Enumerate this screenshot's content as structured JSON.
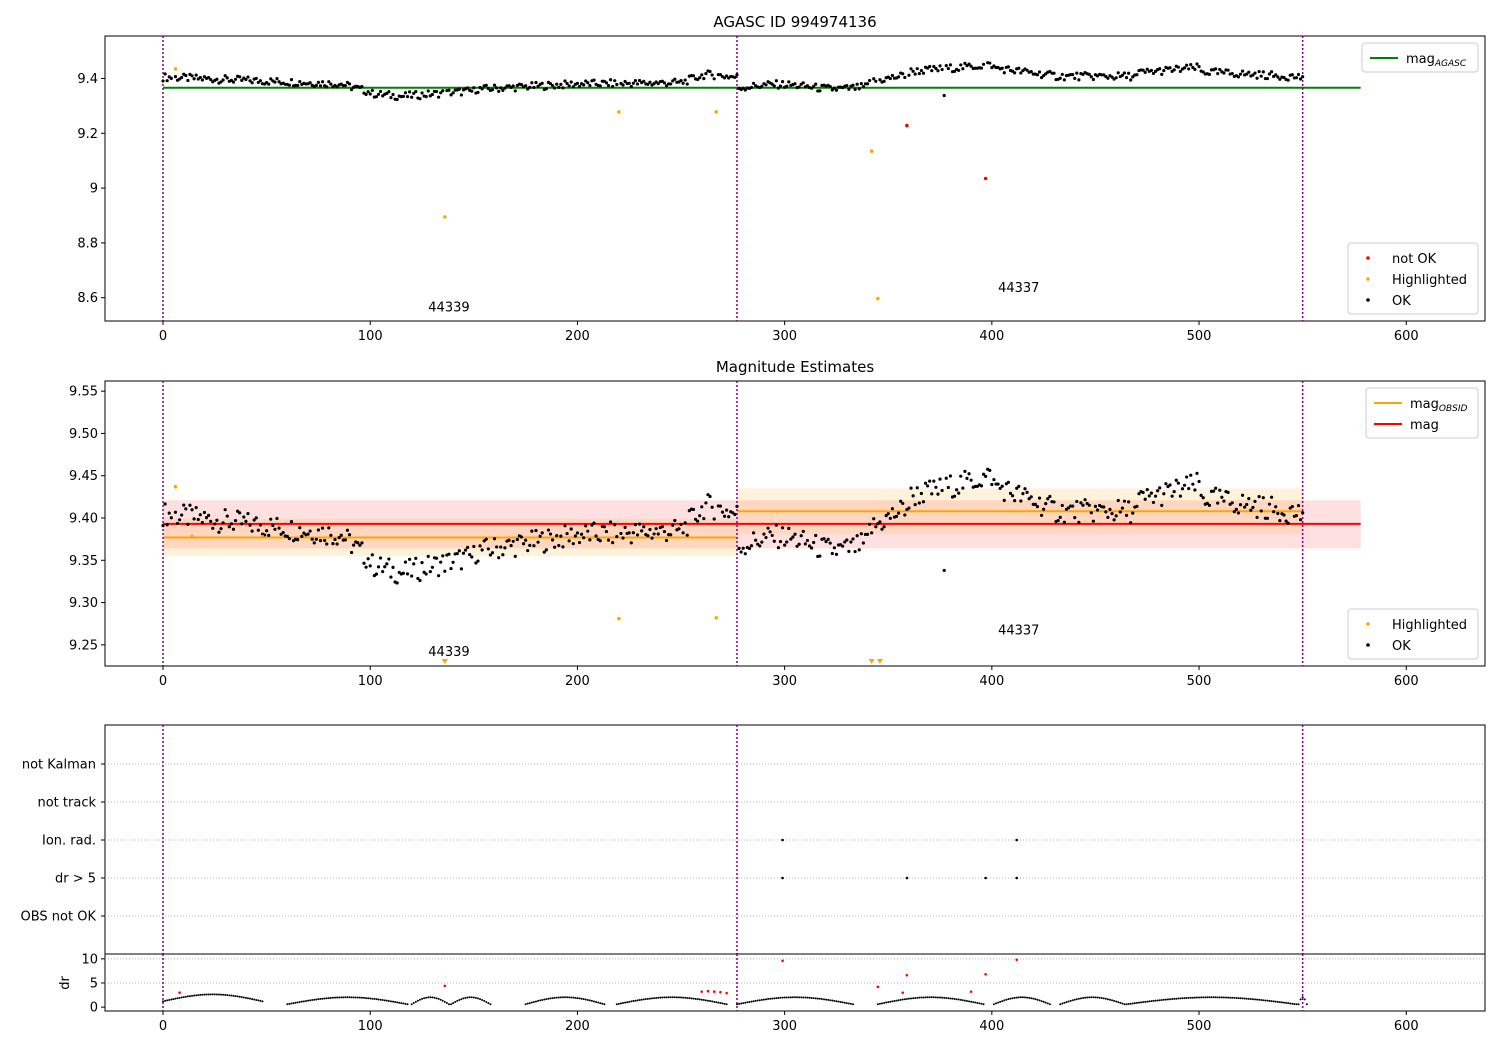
{
  "chart_data": [
    {
      "type": "scatter",
      "title": "AGASC ID 994974136",
      "xlim": [
        -28,
        638
      ],
      "ylim": [
        8.515,
        9.555
      ],
      "xticks": [
        0,
        100,
        200,
        300,
        400,
        500,
        600
      ],
      "yticks": [
        8.6,
        8.8,
        9.0,
        9.2,
        9.4
      ],
      "vlines": [
        0,
        277,
        550
      ],
      "obsid_labels": [
        {
          "text": "44339",
          "x": 138,
          "y": 8.55
        },
        {
          "text": "44337",
          "x": 413,
          "y": 8.62
        }
      ],
      "lines": [
        {
          "name": "mag_AGASC",
          "color": "#008000",
          "y": 9.366,
          "x": [
            0,
            578
          ]
        }
      ],
      "series": [
        {
          "name": "OK",
          "color": "#000000",
          "generator": "ok",
          "offset": 0.0,
          "exclude": [
            5,
            136,
            220,
            267,
            342,
            345,
            359,
            397
          ]
        },
        {
          "name": "Highlighted",
          "color": "#ffa500",
          "points": [
            [
              6,
              9.435
            ],
            [
              136,
              8.895
            ],
            [
              220,
              9.278
            ],
            [
              267,
              9.278
            ],
            [
              342,
              9.135
            ],
            [
              345,
              8.597
            ]
          ]
        },
        {
          "name": "not OK",
          "color": "#ff0000",
          "points": [
            [
              359,
              9.228
            ],
            [
              397,
              9.035
            ]
          ]
        }
      ],
      "legend_upper": [
        {
          "label": "mag",
          "sub": "AGASC",
          "color": "#008000",
          "kind": "line"
        }
      ],
      "legend_lower": [
        {
          "label": "not OK",
          "color": "#ff0000",
          "kind": "dot"
        },
        {
          "label": "Highlighted",
          "color": "#ffa500",
          "kind": "dot"
        },
        {
          "label": "OK",
          "color": "#000000",
          "kind": "dot"
        }
      ]
    },
    {
      "type": "scatter",
      "title": "Magnitude Estimates",
      "xlim": [
        -28,
        638
      ],
      "ylim": [
        9.225,
        9.562
      ],
      "xticks": [
        0,
        100,
        200,
        300,
        400,
        500,
        600
      ],
      "yticks": [
        9.25,
        9.3,
        9.35,
        9.4,
        9.45,
        9.5,
        9.55
      ],
      "ytick_labels": [
        "9.25",
        "9.30",
        "9.35",
        "9.40",
        "9.45",
        "9.50",
        "9.55"
      ],
      "vlines": [
        0,
        277,
        550
      ],
      "obsid_labels": [
        {
          "text": "44339",
          "x": 138,
          "y": 9.237
        },
        {
          "text": "44337",
          "x": 413,
          "y": 9.262
        }
      ],
      "bands": [
        {
          "x": [
            0,
            578
          ],
          "y": [
            9.364,
            9.421
          ],
          "color": "#ff0000",
          "opacity": 0.12
        },
        {
          "x": [
            0,
            277
          ],
          "y": [
            9.355,
            9.399
          ],
          "color": "#ffa500",
          "opacity": 0.14
        },
        {
          "x": [
            277,
            550
          ],
          "y": [
            9.381,
            9.435
          ],
          "color": "#ffa500",
          "opacity": 0.14
        }
      ],
      "lines": [
        {
          "name": "mag",
          "color": "#ff0000",
          "y": 9.393,
          "x": [
            0,
            578
          ]
        },
        {
          "name": "mag_OBSID",
          "color": "#ffa500",
          "y": 9.377,
          "x": [
            0,
            277
          ]
        },
        {
          "name": "mag_OBSID",
          "color": "#ffa500",
          "y": 9.408,
          "x": [
            277,
            550
          ]
        }
      ],
      "series": [
        {
          "name": "OK",
          "color": "#000000",
          "generator": "ok",
          "offset": 0.0,
          "exclude": [
            5,
            220,
            267
          ]
        },
        {
          "name": "Highlighted",
          "color": "#ffa500",
          "points": [
            [
              6,
              9.437
            ],
            [
              14,
              9.378
            ],
            [
              48,
              9.378
            ],
            [
              220,
              9.281
            ],
            [
              267,
              9.282
            ]
          ]
        }
      ],
      "offscale_markers": [
        [
          136,
          9.227
        ],
        [
          342,
          9.227
        ],
        [
          346,
          9.227
        ]
      ],
      "legend_upper": [
        {
          "label": "mag",
          "sub": "OBSID",
          "color": "#ffa500",
          "kind": "line"
        },
        {
          "label": "mag",
          "sub": "",
          "color": "#ff0000",
          "kind": "line"
        }
      ],
      "legend_lower": [
        {
          "label": "Highlighted",
          "color": "#ffa500",
          "kind": "dot"
        },
        {
          "label": "OK",
          "color": "#000000",
          "kind": "dot"
        }
      ]
    },
    {
      "type": "scatter",
      "title": "",
      "xlim": [
        -28,
        638
      ],
      "categories": [
        "not Kalman",
        "not track",
        "Ion. rad.",
        "dr > 5",
        "OBS not OK"
      ],
      "vlines": [
        0,
        277,
        550
      ],
      "flags": [
        {
          "category": "Ion. rad.",
          "x": [
            299,
            412
          ]
        },
        {
          "category": "dr > 5",
          "x": [
            299,
            359,
            397,
            412
          ]
        }
      ]
    },
    {
      "type": "scatter",
      "title": "",
      "ylabel": "dr",
      "xlim": [
        -28,
        638
      ],
      "ylim": [
        -0.8,
        11
      ],
      "xticks": [
        0,
        100,
        200,
        300,
        400,
        500,
        600
      ],
      "yticks": [
        0,
        5,
        10
      ],
      "vlines": [
        0,
        277,
        550
      ],
      "segments": [
        [
          0,
          48
        ],
        [
          60,
          118
        ],
        [
          120,
          138
        ],
        [
          139,
          158
        ],
        [
          175,
          213
        ],
        [
          219,
          272
        ],
        [
          277,
          333
        ],
        [
          345,
          396
        ],
        [
          401,
          428
        ],
        [
          433,
          464
        ],
        [
          465,
          547
        ],
        [
          548,
          552
        ]
      ],
      "red_points": [
        [
          136,
          4.4
        ],
        [
          260,
          3.2
        ],
        [
          263,
          3.3
        ],
        [
          266,
          3.2
        ],
        [
          269,
          3.1
        ],
        [
          272,
          2.9
        ],
        [
          299,
          9.6
        ],
        [
          345,
          4.2
        ],
        [
          359,
          6.6
        ],
        [
          357,
          3.0
        ],
        [
          397,
          6.8
        ],
        [
          390,
          3.2
        ],
        [
          412,
          9.8
        ],
        [
          8,
          3.0
        ]
      ]
    }
  ]
}
